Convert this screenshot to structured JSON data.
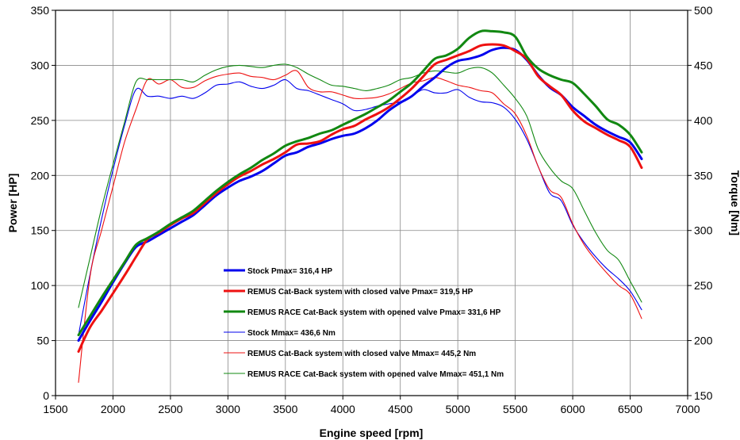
{
  "chart_data": {
    "type": "line",
    "title": "",
    "xlabel": "Engine speed [rpm]",
    "ylabel_left": "Power [HP]",
    "ylabel_right": "Torque [Nm]",
    "xlim": [
      1500,
      7000
    ],
    "ylim_left": [
      0,
      350
    ],
    "ylim_right": [
      150,
      500
    ],
    "x_ticks": [
      "1500",
      "2000",
      "2500",
      "3000",
      "3500",
      "4000",
      "4500",
      "5000",
      "5500",
      "6000",
      "6500",
      "7000"
    ],
    "y_left_ticks": [
      "0",
      "50",
      "100",
      "150",
      "200",
      "250",
      "300",
      "350"
    ],
    "y_right_ticks": [
      "150",
      "200",
      "250",
      "300",
      "350",
      "400",
      "450",
      "500"
    ],
    "grid": true,
    "series": [
      {
        "name": "Stock Pmax= 316,4 HP",
        "axis": "left",
        "color": "#0000ee",
        "thick": true,
        "points": [
          [
            1700,
            50
          ],
          [
            1800,
            68
          ],
          [
            1900,
            85
          ],
          [
            2000,
            103
          ],
          [
            2100,
            120
          ],
          [
            2200,
            135
          ],
          [
            2300,
            140
          ],
          [
            2400,
            146
          ],
          [
            2500,
            152
          ],
          [
            2600,
            158
          ],
          [
            2700,
            164
          ],
          [
            2800,
            173
          ],
          [
            2900,
            182
          ],
          [
            3000,
            189
          ],
          [
            3100,
            195
          ],
          [
            3200,
            199
          ],
          [
            3300,
            204
          ],
          [
            3400,
            211
          ],
          [
            3500,
            218
          ],
          [
            3600,
            221
          ],
          [
            3700,
            226
          ],
          [
            3800,
            229
          ],
          [
            3900,
            233
          ],
          [
            4000,
            236
          ],
          [
            4100,
            238
          ],
          [
            4200,
            243
          ],
          [
            4300,
            250
          ],
          [
            4400,
            259
          ],
          [
            4500,
            266
          ],
          [
            4600,
            272
          ],
          [
            4700,
            281
          ],
          [
            4800,
            289
          ],
          [
            4900,
            298
          ],
          [
            5000,
            304
          ],
          [
            5100,
            306
          ],
          [
            5200,
            309
          ],
          [
            5300,
            314
          ],
          [
            5400,
            316
          ],
          [
            5500,
            314
          ],
          [
            5600,
            305
          ],
          [
            5700,
            291
          ],
          [
            5800,
            280
          ],
          [
            5900,
            273
          ],
          [
            6000,
            262
          ],
          [
            6100,
            254
          ],
          [
            6200,
            246
          ],
          [
            6300,
            240
          ],
          [
            6400,
            235
          ],
          [
            6500,
            230
          ],
          [
            6600,
            215
          ]
        ]
      },
      {
        "name": "REMUS Cat-Back system with closed valve Pmax=  319,5 HP",
        "axis": "left",
        "color": "#ee1111",
        "thick": true,
        "points": [
          [
            1700,
            40
          ],
          [
            1800,
            62
          ],
          [
            1900,
            77
          ],
          [
            2000,
            93
          ],
          [
            2100,
            109
          ],
          [
            2200,
            126
          ],
          [
            2300,
            142
          ],
          [
            2400,
            148
          ],
          [
            2500,
            155
          ],
          [
            2600,
            161
          ],
          [
            2700,
            166
          ],
          [
            2800,
            175
          ],
          [
            2900,
            184
          ],
          [
            3000,
            192
          ],
          [
            3100,
            199
          ],
          [
            3200,
            204
          ],
          [
            3300,
            210
          ],
          [
            3400,
            215
          ],
          [
            3500,
            221
          ],
          [
            3600,
            228
          ],
          [
            3700,
            229
          ],
          [
            3800,
            231
          ],
          [
            3900,
            237
          ],
          [
            4000,
            242
          ],
          [
            4100,
            245
          ],
          [
            4200,
            251
          ],
          [
            4300,
            256
          ],
          [
            4400,
            262
          ],
          [
            4500,
            270
          ],
          [
            4600,
            279
          ],
          [
            4700,
            290
          ],
          [
            4800,
            301
          ],
          [
            4900,
            305
          ],
          [
            5000,
            309
          ],
          [
            5100,
            313
          ],
          [
            5200,
            318
          ],
          [
            5300,
            319
          ],
          [
            5400,
            318
          ],
          [
            5500,
            313
          ],
          [
            5600,
            306
          ],
          [
            5700,
            290
          ],
          [
            5800,
            281
          ],
          [
            5900,
            273
          ],
          [
            6000,
            259
          ],
          [
            6100,
            249
          ],
          [
            6200,
            243
          ],
          [
            6300,
            237
          ],
          [
            6400,
            232
          ],
          [
            6500,
            226
          ],
          [
            6600,
            207
          ]
        ]
      },
      {
        "name": "REMUS RACE Cat-Back system with opened valve Pmax= 331,6 HP",
        "axis": "left",
        "color": "#118811",
        "thick": true,
        "points": [
          [
            1700,
            55
          ],
          [
            1800,
            72
          ],
          [
            1900,
            89
          ],
          [
            2000,
            105
          ],
          [
            2100,
            121
          ],
          [
            2200,
            137
          ],
          [
            2300,
            143
          ],
          [
            2400,
            149
          ],
          [
            2500,
            156
          ],
          [
            2600,
            162
          ],
          [
            2700,
            168
          ],
          [
            2800,
            177
          ],
          [
            2900,
            186
          ],
          [
            3000,
            194
          ],
          [
            3100,
            201
          ],
          [
            3200,
            207
          ],
          [
            3300,
            214
          ],
          [
            3400,
            220
          ],
          [
            3500,
            227
          ],
          [
            3600,
            231
          ],
          [
            3700,
            234
          ],
          [
            3800,
            238
          ],
          [
            3900,
            241
          ],
          [
            4000,
            246
          ],
          [
            4100,
            251
          ],
          [
            4200,
            256
          ],
          [
            4300,
            262
          ],
          [
            4400,
            268
          ],
          [
            4500,
            276
          ],
          [
            4600,
            284
          ],
          [
            4700,
            295
          ],
          [
            4800,
            306
          ],
          [
            4900,
            309
          ],
          [
            5000,
            315
          ],
          [
            5100,
            325
          ],
          [
            5200,
            331
          ],
          [
            5300,
            331
          ],
          [
            5400,
            330
          ],
          [
            5500,
            326
          ],
          [
            5600,
            308
          ],
          [
            5700,
            297
          ],
          [
            5800,
            291
          ],
          [
            5900,
            287
          ],
          [
            6000,
            284
          ],
          [
            6100,
            274
          ],
          [
            6200,
            263
          ],
          [
            6300,
            251
          ],
          [
            6400,
            246
          ],
          [
            6500,
            237
          ],
          [
            6600,
            221
          ]
        ]
      },
      {
        "name": "Stock Mmax= 436,6 Nm",
        "axis": "right",
        "color": "#0000ee",
        "thick": false,
        "points": [
          [
            1700,
            205
          ],
          [
            1800,
            260
          ],
          [
            1900,
            310
          ],
          [
            2000,
            355
          ],
          [
            2100,
            395
          ],
          [
            2200,
            428
          ],
          [
            2300,
            422
          ],
          [
            2400,
            422
          ],
          [
            2500,
            420
          ],
          [
            2600,
            422
          ],
          [
            2700,
            420
          ],
          [
            2800,
            425
          ],
          [
            2900,
            432
          ],
          [
            3000,
            433
          ],
          [
            3100,
            435
          ],
          [
            3200,
            431
          ],
          [
            3300,
            429
          ],
          [
            3400,
            432
          ],
          [
            3500,
            437
          ],
          [
            3600,
            429
          ],
          [
            3700,
            427
          ],
          [
            3800,
            423
          ],
          [
            3900,
            419
          ],
          [
            4000,
            415
          ],
          [
            4100,
            409
          ],
          [
            4200,
            410
          ],
          [
            4300,
            413
          ],
          [
            4400,
            415
          ],
          [
            4500,
            417
          ],
          [
            4600,
            422
          ],
          [
            4700,
            428
          ],
          [
            4800,
            425
          ],
          [
            4900,
            425
          ],
          [
            5000,
            428
          ],
          [
            5100,
            421
          ],
          [
            5200,
            417
          ],
          [
            5300,
            416
          ],
          [
            5400,
            412
          ],
          [
            5500,
            401
          ],
          [
            5600,
            383
          ],
          [
            5700,
            358
          ],
          [
            5800,
            334
          ],
          [
            5900,
            327
          ],
          [
            6000,
            305
          ],
          [
            6100,
            289
          ],
          [
            6200,
            276
          ],
          [
            6300,
            265
          ],
          [
            6400,
            256
          ],
          [
            6500,
            245
          ],
          [
            6600,
            228
          ]
        ]
      },
      {
        "name": "REMUS Cat-Back system with closed valve Mmax= 445,2 Nm",
        "axis": "right",
        "color": "#ee1111",
        "thick": false,
        "points": [
          [
            1700,
            162
          ],
          [
            1800,
            258
          ],
          [
            1900,
            300
          ],
          [
            2000,
            340
          ],
          [
            2100,
            380
          ],
          [
            2200,
            410
          ],
          [
            2300,
            437
          ],
          [
            2400,
            433
          ],
          [
            2500,
            437
          ],
          [
            2600,
            430
          ],
          [
            2700,
            430
          ],
          [
            2800,
            436
          ],
          [
            2900,
            440
          ],
          [
            3000,
            442
          ],
          [
            3100,
            443
          ],
          [
            3200,
            440
          ],
          [
            3300,
            439
          ],
          [
            3400,
            437
          ],
          [
            3500,
            441
          ],
          [
            3600,
            445
          ],
          [
            3700,
            430
          ],
          [
            3800,
            426
          ],
          [
            3900,
            426
          ],
          [
            4000,
            423
          ],
          [
            4100,
            420
          ],
          [
            4200,
            420
          ],
          [
            4300,
            421
          ],
          [
            4400,
            424
          ],
          [
            4500,
            429
          ],
          [
            4600,
            434
          ],
          [
            4700,
            436
          ],
          [
            4800,
            439
          ],
          [
            4900,
            436
          ],
          [
            5000,
            432
          ],
          [
            5100,
            430
          ],
          [
            5200,
            427
          ],
          [
            5300,
            425
          ],
          [
            5400,
            415
          ],
          [
            5500,
            406
          ],
          [
            5600,
            386
          ],
          [
            5700,
            358
          ],
          [
            5800,
            337
          ],
          [
            5900,
            330
          ],
          [
            6000,
            306
          ],
          [
            6100,
            287
          ],
          [
            6200,
            273
          ],
          [
            6300,
            261
          ],
          [
            6400,
            250
          ],
          [
            6500,
            242
          ],
          [
            6600,
            220
          ]
        ]
      },
      {
        "name": "REMUS RACE Cat-Back system with opened valve Mmax= 451,1 Nm",
        "axis": "right",
        "color": "#118811",
        "thick": false,
        "points": [
          [
            1700,
            230
          ],
          [
            1800,
            275
          ],
          [
            1900,
            320
          ],
          [
            2000,
            360
          ],
          [
            2100,
            398
          ],
          [
            2200,
            435
          ],
          [
            2300,
            437
          ],
          [
            2400,
            437
          ],
          [
            2500,
            437
          ],
          [
            2600,
            437
          ],
          [
            2700,
            435
          ],
          [
            2800,
            441
          ],
          [
            2900,
            446
          ],
          [
            3000,
            449
          ],
          [
            3100,
            450
          ],
          [
            3200,
            449
          ],
          [
            3300,
            448
          ],
          [
            3400,
            450
          ],
          [
            3500,
            451
          ],
          [
            3600,
            448
          ],
          [
            3700,
            442
          ],
          [
            3800,
            437
          ],
          [
            3900,
            432
          ],
          [
            4000,
            431
          ],
          [
            4100,
            429
          ],
          [
            4200,
            427
          ],
          [
            4300,
            429
          ],
          [
            4400,
            432
          ],
          [
            4500,
            437
          ],
          [
            4600,
            439
          ],
          [
            4700,
            443
          ],
          [
            4800,
            445
          ],
          [
            4900,
            444
          ],
          [
            5000,
            443
          ],
          [
            5100,
            447
          ],
          [
            5200,
            448
          ],
          [
            5300,
            443
          ],
          [
            5400,
            432
          ],
          [
            5500,
            420
          ],
          [
            5600,
            404
          ],
          [
            5700,
            374
          ],
          [
            5800,
            357
          ],
          [
            5900,
            345
          ],
          [
            6000,
            338
          ],
          [
            6100,
            318
          ],
          [
            6200,
            298
          ],
          [
            6300,
            282
          ],
          [
            6400,
            273
          ],
          [
            6500,
            254
          ],
          [
            6600,
            235
          ]
        ]
      }
    ]
  }
}
